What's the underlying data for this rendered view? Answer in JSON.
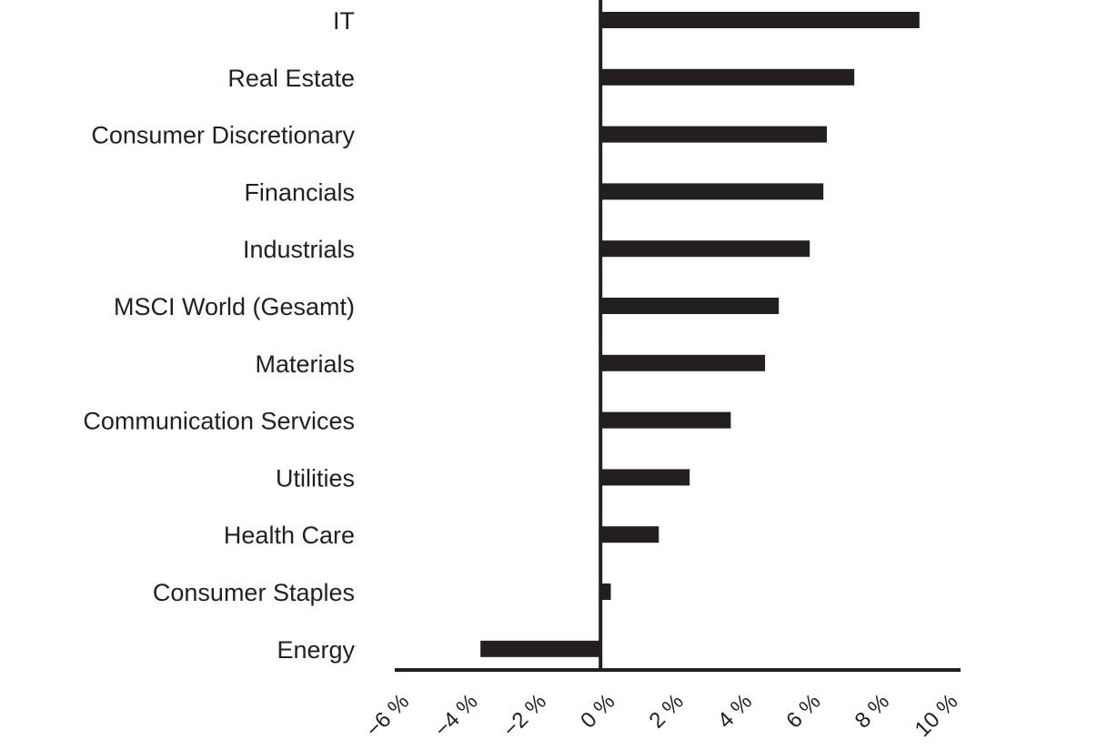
{
  "chart_data": {
    "type": "bar",
    "orientation": "horizontal",
    "categories": [
      "IT",
      "Real Estate",
      "Consumer Discretionary",
      "Financials",
      "Industrials",
      "MSCI World (Gesamt)",
      "Materials",
      "Communication Services",
      "Utilities",
      "Health Care",
      "Consumer Staples",
      "Energy"
    ],
    "values": [
      9.3,
      7.4,
      6.6,
      6.5,
      6.1,
      5.2,
      4.8,
      3.8,
      2.6,
      1.7,
      0.3,
      -3.5
    ],
    "xlim": [
      -6,
      10.5
    ],
    "xticks": [
      -6,
      -4,
      -2,
      0,
      2,
      4,
      6,
      8,
      10
    ],
    "xtick_labels": [
      "−6 %",
      "−4 %",
      "−2 %",
      "0 %",
      "2 %",
      "4 %",
      "6 %",
      "8 %",
      "10 %"
    ],
    "title": "",
    "xlabel": "",
    "ylabel": "",
    "grid": false,
    "bar_color": "#231f20",
    "axis_color": "#231f20"
  }
}
